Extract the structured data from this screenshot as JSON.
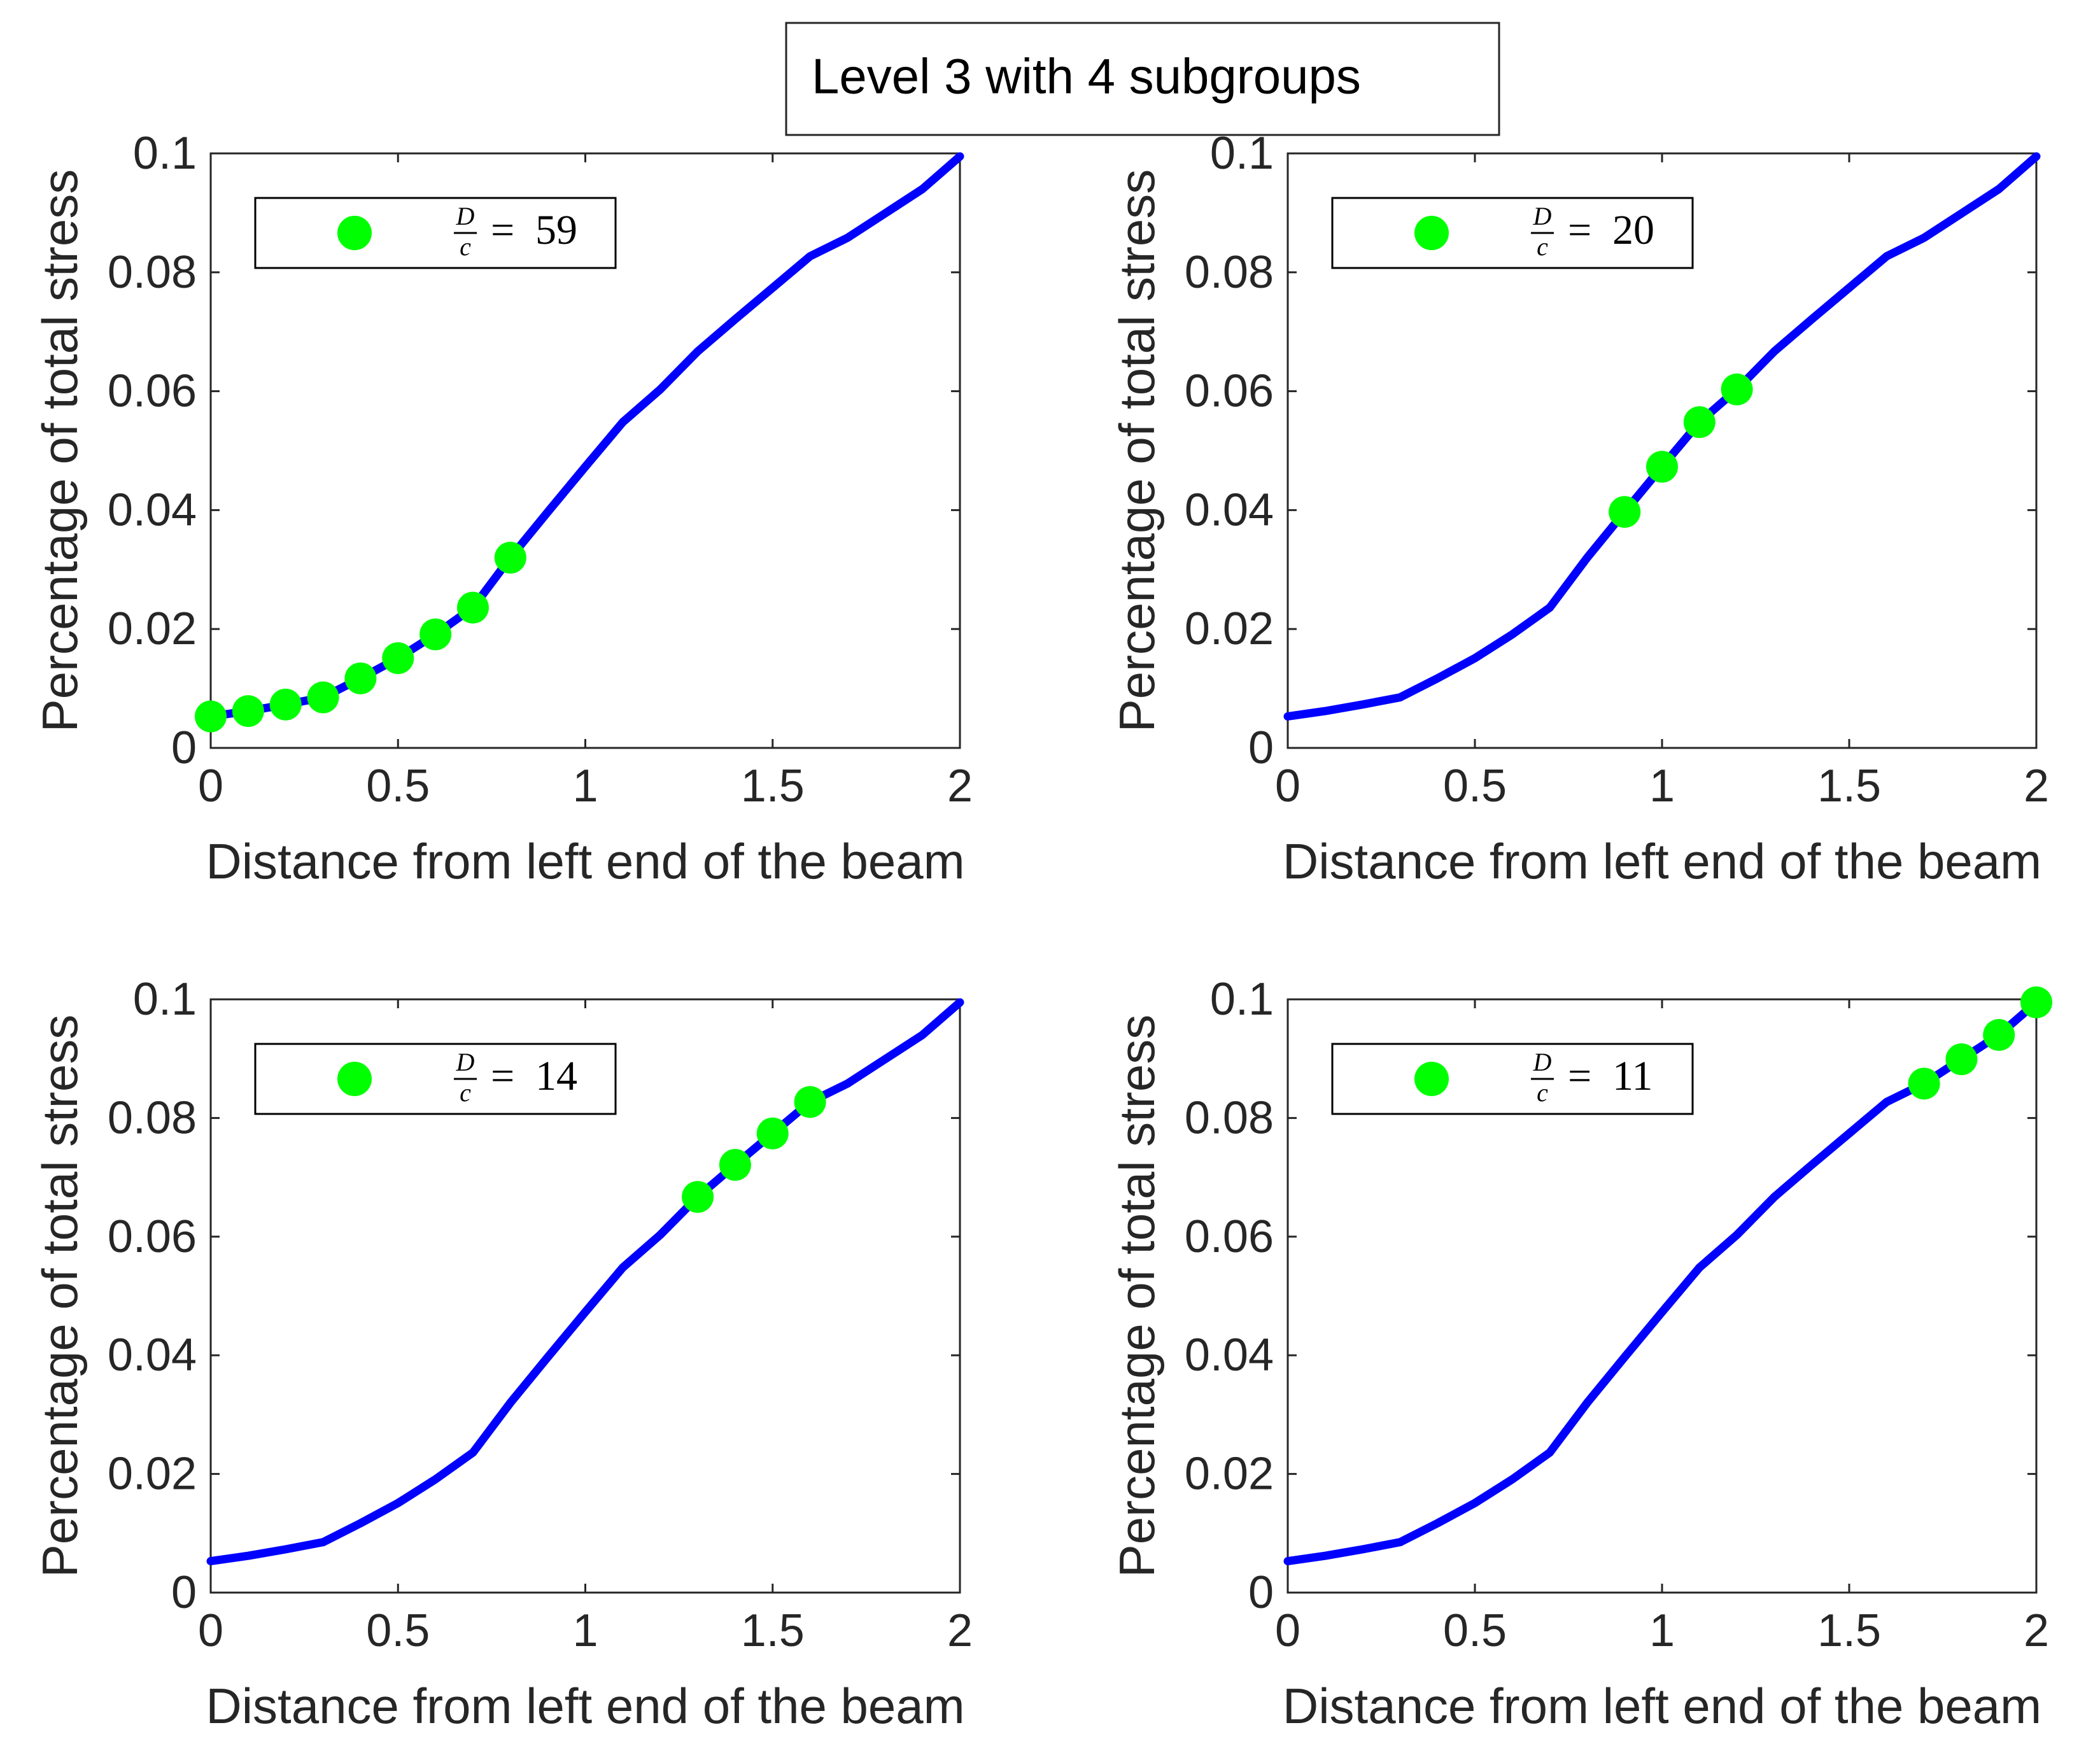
{
  "figure_title": "Level 3 with 4 subgroups",
  "colors": {
    "line": "#0000ff",
    "marker": "#00ff00",
    "axis": "#262626"
  },
  "chart_data": [
    {
      "type": "line",
      "title": "",
      "xlabel": "Distance from left end of the beam",
      "ylabel": "Percentage of total stress",
      "xlim": [
        0,
        2
      ],
      "ylim": [
        0,
        0.1
      ],
      "xticks": [
        0,
        0.5,
        1,
        1.5,
        2
      ],
      "xtick_labels": [
        "0",
        "0.5",
        "1",
        "1.5",
        "2"
      ],
      "yticks": [
        0,
        0.02,
        0.04,
        0.06,
        0.08,
        0.1
      ],
      "ytick_labels": [
        "0",
        "0.02",
        "0.04",
        "0.06",
        "0.08",
        "0.1"
      ],
      "legend": {
        "lhs_num": "D",
        "lhs_den": "c",
        "eq": "=",
        "value": "59"
      },
      "line": {
        "x": [
          0,
          0.1,
          0.2,
          0.3,
          0.4,
          0.5,
          0.6,
          0.7,
          0.8,
          0.9,
          1.0,
          1.1,
          1.2,
          1.3,
          1.4,
          1.5,
          1.6,
          1.7,
          1.8,
          1.9,
          2.0
        ],
        "y": [
          0.0053,
          0.0062,
          0.0073,
          0.0085,
          0.0117,
          0.0151,
          0.0191,
          0.0236,
          0.032,
          0.0397,
          0.0473,
          0.0548,
          0.0603,
          0.0667,
          0.0721,
          0.0774,
          0.0827,
          0.0858,
          0.0899,
          0.094,
          0.0995
        ]
      },
      "markers": {
        "x": [
          0,
          0.1,
          0.2,
          0.3,
          0.4,
          0.5,
          0.6,
          0.7,
          0.8
        ],
        "y": [
          0.0053,
          0.0062,
          0.0073,
          0.0085,
          0.0117,
          0.0151,
          0.0191,
          0.0236,
          0.032
        ]
      }
    },
    {
      "type": "line",
      "title": "",
      "xlabel": "Distance from left end of the beam",
      "ylabel": "Percentage of total stress",
      "xlim": [
        0,
        2
      ],
      "ylim": [
        0,
        0.1
      ],
      "xticks": [
        0,
        0.5,
        1,
        1.5,
        2
      ],
      "xtick_labels": [
        "0",
        "0.5",
        "1",
        "1.5",
        "2"
      ],
      "yticks": [
        0,
        0.02,
        0.04,
        0.06,
        0.08,
        0.1
      ],
      "ytick_labels": [
        "0",
        "0.02",
        "0.04",
        "0.06",
        "0.08",
        "0.1"
      ],
      "legend": {
        "lhs_num": "D",
        "lhs_den": "c",
        "eq": "=",
        "value": "20"
      },
      "line": {
        "x": [
          0,
          0.1,
          0.2,
          0.3,
          0.4,
          0.5,
          0.6,
          0.7,
          0.8,
          0.9,
          1.0,
          1.1,
          1.2,
          1.3,
          1.4,
          1.5,
          1.6,
          1.7,
          1.8,
          1.9,
          2.0
        ],
        "y": [
          0.0053,
          0.0062,
          0.0073,
          0.0085,
          0.0117,
          0.0151,
          0.0191,
          0.0236,
          0.032,
          0.0397,
          0.0473,
          0.0548,
          0.0603,
          0.0667,
          0.0721,
          0.0774,
          0.0827,
          0.0858,
          0.0899,
          0.094,
          0.0995
        ]
      },
      "markers": {
        "x": [
          0.9,
          1.0,
          1.1,
          1.2
        ],
        "y": [
          0.0397,
          0.0473,
          0.0548,
          0.0603
        ]
      }
    },
    {
      "type": "line",
      "title": "",
      "xlabel": "Distance from left end of the beam",
      "ylabel": "Percentage of total stress",
      "xlim": [
        0,
        2
      ],
      "ylim": [
        0,
        0.1
      ],
      "xticks": [
        0,
        0.5,
        1,
        1.5,
        2
      ],
      "xtick_labels": [
        "0",
        "0.5",
        "1",
        "1.5",
        "2"
      ],
      "yticks": [
        0,
        0.02,
        0.04,
        0.06,
        0.08,
        0.1
      ],
      "ytick_labels": [
        "0",
        "0.02",
        "0.04",
        "0.06",
        "0.08",
        "0.1"
      ],
      "legend": {
        "lhs_num": "D",
        "lhs_den": "c",
        "eq": "=",
        "value": "14"
      },
      "line": {
        "x": [
          0,
          0.1,
          0.2,
          0.3,
          0.4,
          0.5,
          0.6,
          0.7,
          0.8,
          0.9,
          1.0,
          1.1,
          1.2,
          1.3,
          1.4,
          1.5,
          1.6,
          1.7,
          1.8,
          1.9,
          2.0
        ],
        "y": [
          0.0053,
          0.0062,
          0.0073,
          0.0085,
          0.0117,
          0.0151,
          0.0191,
          0.0236,
          0.032,
          0.0397,
          0.0473,
          0.0548,
          0.0603,
          0.0667,
          0.0721,
          0.0774,
          0.0827,
          0.0858,
          0.0899,
          0.094,
          0.0995
        ]
      },
      "markers": {
        "x": [
          1.3,
          1.4,
          1.5,
          1.6
        ],
        "y": [
          0.0667,
          0.0721,
          0.0774,
          0.0827
        ]
      }
    },
    {
      "type": "line",
      "title": "",
      "xlabel": "Distance from left end of the beam",
      "ylabel": "Percentage of total stress",
      "xlim": [
        0,
        2
      ],
      "ylim": [
        0,
        0.1
      ],
      "xticks": [
        0,
        0.5,
        1,
        1.5,
        2
      ],
      "xtick_labels": [
        "0",
        "0.5",
        "1",
        "1.5",
        "2"
      ],
      "yticks": [
        0,
        0.02,
        0.04,
        0.06,
        0.08,
        0.1
      ],
      "ytick_labels": [
        "0",
        "0.02",
        "0.04",
        "0.06",
        "0.08",
        "0.1"
      ],
      "legend": {
        "lhs_num": "D",
        "lhs_den": "c",
        "eq": "=",
        "value": "11"
      },
      "line": {
        "x": [
          0,
          0.1,
          0.2,
          0.3,
          0.4,
          0.5,
          0.6,
          0.7,
          0.8,
          0.9,
          1.0,
          1.1,
          1.2,
          1.3,
          1.4,
          1.5,
          1.6,
          1.7,
          1.8,
          1.9,
          2.0
        ],
        "y": [
          0.0053,
          0.0062,
          0.0073,
          0.0085,
          0.0117,
          0.0151,
          0.0191,
          0.0236,
          0.032,
          0.0397,
          0.0473,
          0.0548,
          0.0603,
          0.0667,
          0.0721,
          0.0774,
          0.0827,
          0.0858,
          0.0899,
          0.094,
          0.0995
        ]
      },
      "markers": {
        "x": [
          1.7,
          1.8,
          1.9,
          2.0
        ],
        "y": [
          0.0858,
          0.0899,
          0.094,
          0.0995
        ]
      }
    }
  ]
}
